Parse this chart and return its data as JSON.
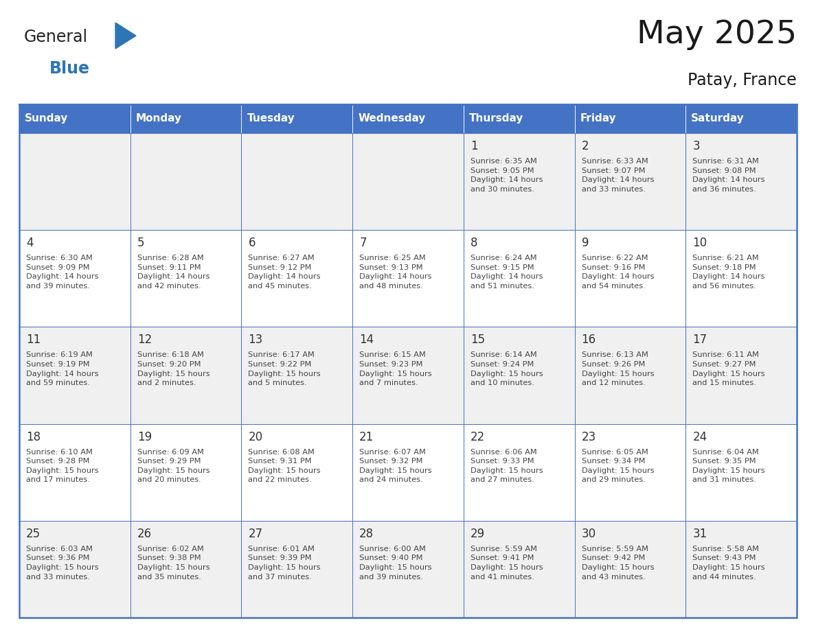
{
  "title": "May 2025",
  "subtitle": "Patay, France",
  "header_bg": "#4472C4",
  "header_text_color": "#FFFFFF",
  "day_names": [
    "Sunday",
    "Monday",
    "Tuesday",
    "Wednesday",
    "Thursday",
    "Friday",
    "Saturday"
  ],
  "cell_bg_even": "#F0F0F0",
  "cell_bg_odd": "#FFFFFF",
  "cell_border_color": "#4472C4",
  "text_color": "#444444",
  "number_color": "#333333",
  "logo_general_color": "#222222",
  "logo_blue_color": "#2E75B6",
  "logo_triangle_color": "#2E75B6",
  "calendar_data": [
    [
      "",
      "",
      "",
      "",
      "1\nSunrise: 6:35 AM\nSunset: 9:05 PM\nDaylight: 14 hours\nand 30 minutes.",
      "2\nSunrise: 6:33 AM\nSunset: 9:07 PM\nDaylight: 14 hours\nand 33 minutes.",
      "3\nSunrise: 6:31 AM\nSunset: 9:08 PM\nDaylight: 14 hours\nand 36 minutes."
    ],
    [
      "4\nSunrise: 6:30 AM\nSunset: 9:09 PM\nDaylight: 14 hours\nand 39 minutes.",
      "5\nSunrise: 6:28 AM\nSunset: 9:11 PM\nDaylight: 14 hours\nand 42 minutes.",
      "6\nSunrise: 6:27 AM\nSunset: 9:12 PM\nDaylight: 14 hours\nand 45 minutes.",
      "7\nSunrise: 6:25 AM\nSunset: 9:13 PM\nDaylight: 14 hours\nand 48 minutes.",
      "8\nSunrise: 6:24 AM\nSunset: 9:15 PM\nDaylight: 14 hours\nand 51 minutes.",
      "9\nSunrise: 6:22 AM\nSunset: 9:16 PM\nDaylight: 14 hours\nand 54 minutes.",
      "10\nSunrise: 6:21 AM\nSunset: 9:18 PM\nDaylight: 14 hours\nand 56 minutes."
    ],
    [
      "11\nSunrise: 6:19 AM\nSunset: 9:19 PM\nDaylight: 14 hours\nand 59 minutes.",
      "12\nSunrise: 6:18 AM\nSunset: 9:20 PM\nDaylight: 15 hours\nand 2 minutes.",
      "13\nSunrise: 6:17 AM\nSunset: 9:22 PM\nDaylight: 15 hours\nand 5 minutes.",
      "14\nSunrise: 6:15 AM\nSunset: 9:23 PM\nDaylight: 15 hours\nand 7 minutes.",
      "15\nSunrise: 6:14 AM\nSunset: 9:24 PM\nDaylight: 15 hours\nand 10 minutes.",
      "16\nSunrise: 6:13 AM\nSunset: 9:26 PM\nDaylight: 15 hours\nand 12 minutes.",
      "17\nSunrise: 6:11 AM\nSunset: 9:27 PM\nDaylight: 15 hours\nand 15 minutes."
    ],
    [
      "18\nSunrise: 6:10 AM\nSunset: 9:28 PM\nDaylight: 15 hours\nand 17 minutes.",
      "19\nSunrise: 6:09 AM\nSunset: 9:29 PM\nDaylight: 15 hours\nand 20 minutes.",
      "20\nSunrise: 6:08 AM\nSunset: 9:31 PM\nDaylight: 15 hours\nand 22 minutes.",
      "21\nSunrise: 6:07 AM\nSunset: 9:32 PM\nDaylight: 15 hours\nand 24 minutes.",
      "22\nSunrise: 6:06 AM\nSunset: 9:33 PM\nDaylight: 15 hours\nand 27 minutes.",
      "23\nSunrise: 6:05 AM\nSunset: 9:34 PM\nDaylight: 15 hours\nand 29 minutes.",
      "24\nSunrise: 6:04 AM\nSunset: 9:35 PM\nDaylight: 15 hours\nand 31 minutes."
    ],
    [
      "25\nSunrise: 6:03 AM\nSunset: 9:36 PM\nDaylight: 15 hours\nand 33 minutes.",
      "26\nSunrise: 6:02 AM\nSunset: 9:38 PM\nDaylight: 15 hours\nand 35 minutes.",
      "27\nSunrise: 6:01 AM\nSunset: 9:39 PM\nDaylight: 15 hours\nand 37 minutes.",
      "28\nSunrise: 6:00 AM\nSunset: 9:40 PM\nDaylight: 15 hours\nand 39 minutes.",
      "29\nSunrise: 5:59 AM\nSunset: 9:41 PM\nDaylight: 15 hours\nand 41 minutes.",
      "30\nSunrise: 5:59 AM\nSunset: 9:42 PM\nDaylight: 15 hours\nand 43 minutes.",
      "31\nSunrise: 5:58 AM\nSunset: 9:43 PM\nDaylight: 15 hours\nand 44 minutes."
    ]
  ]
}
